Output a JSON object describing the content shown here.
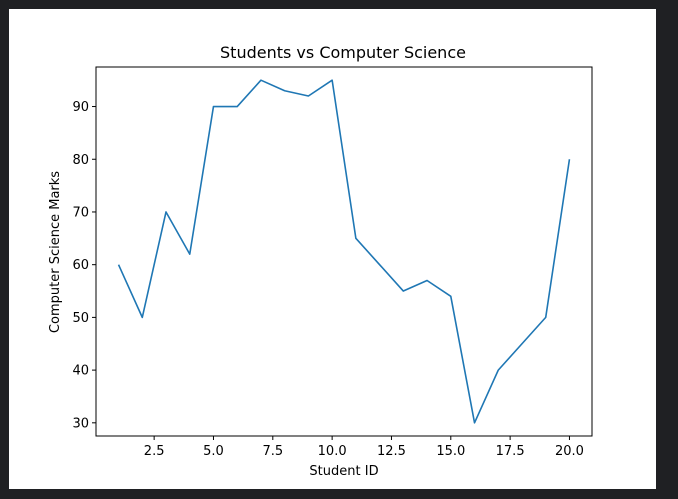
{
  "chart_data": {
    "type": "line",
    "title": "Students vs Computer Science",
    "xlabel": "Student ID",
    "ylabel": "Computer Science Marks",
    "xlim": [
      0.05,
      20.95
    ],
    "ylim": [
      27.5,
      97.5
    ],
    "xticks": [
      2.5,
      5.0,
      7.5,
      10.0,
      12.5,
      15.0,
      17.5,
      20.0
    ],
    "xtick_labels": [
      "2.5",
      "5.0",
      "7.5",
      "10.0",
      "12.5",
      "15.0",
      "17.5",
      "20.0"
    ],
    "yticks": [
      30,
      40,
      50,
      60,
      70,
      80,
      90
    ],
    "ytick_labels": [
      "30",
      "40",
      "50",
      "60",
      "70",
      "80",
      "90"
    ],
    "grid": false,
    "series": [
      {
        "color": "#1f77b4",
        "x": [
          1,
          2,
          3,
          4,
          5,
          6,
          7,
          8,
          9,
          10,
          11,
          12,
          13,
          14,
          15,
          16,
          17,
          18,
          19,
          20
        ],
        "y": [
          60,
          50,
          70,
          62,
          90,
          90,
          95,
          93,
          92,
          95,
          65,
          60,
          55,
          57,
          54,
          30,
          40,
          45,
          50,
          80
        ]
      }
    ]
  }
}
